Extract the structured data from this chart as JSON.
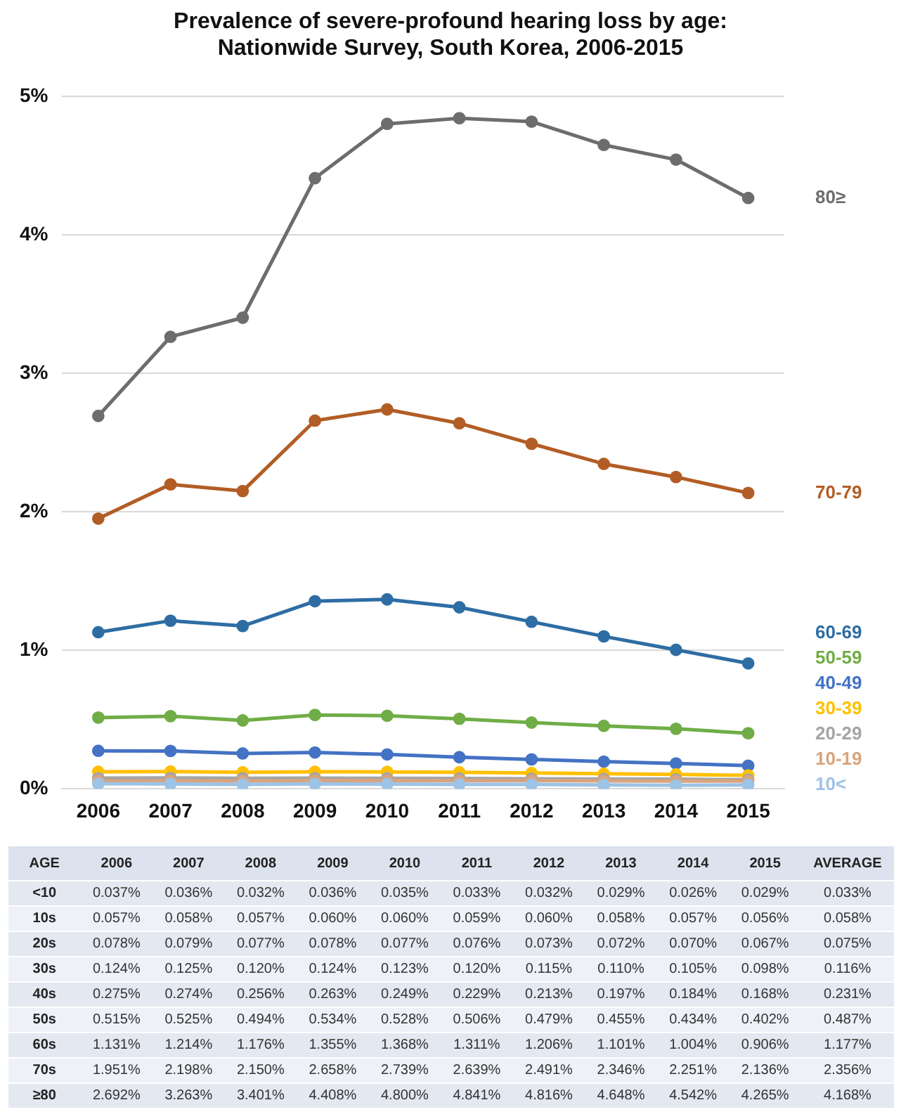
{
  "chart_data": {
    "type": "line",
    "title": "Prevalence of severe-profound hearing loss by age: Nationwide Survey, South Korea, 2006-2015",
    "categories": [
      "2006",
      "2007",
      "2008",
      "2009",
      "2010",
      "2011",
      "2012",
      "2013",
      "2014",
      "2015"
    ],
    "ylim": [
      0,
      5
    ],
    "yticks": [
      {
        "value": 0,
        "label": "0%"
      },
      {
        "value": 1,
        "label": "1%"
      },
      {
        "value": 2,
        "label": "2%"
      },
      {
        "value": 3,
        "label": "3%"
      },
      {
        "value": 4,
        "label": "4%"
      },
      {
        "value": 5,
        "label": "5%"
      }
    ],
    "grid": "y",
    "legend": "right",
    "marker": "circle",
    "line_style": "solid",
    "series": [
      {
        "name": "10<",
        "color": "#9dc3e6",
        "values": [
          0.037,
          0.036,
          0.032,
          0.036,
          0.035,
          0.033,
          0.032,
          0.029,
          0.026,
          0.029
        ],
        "value_labels": [
          "0.037%",
          "0.036%",
          "0.032%",
          "0.036%",
          "0.035%",
          "0.033%",
          "0.032%",
          "0.029%",
          "0.026%",
          "0.029%"
        ]
      },
      {
        "name": "10-19",
        "color": "#d8a47f",
        "values": [
          0.057,
          0.058,
          0.057,
          0.06,
          0.06,
          0.059,
          0.06,
          0.058,
          0.057,
          0.056
        ],
        "value_labels": [
          "0.057%",
          "0.058%",
          "0.057%",
          "0.060%",
          "0.060%",
          "0.059%",
          "0.060%",
          "0.058%",
          "0.057%",
          "0.056%"
        ]
      },
      {
        "name": "20-29",
        "color": "#a5a5a5",
        "values": [
          0.078,
          0.079,
          0.077,
          0.078,
          0.077,
          0.076,
          0.073,
          0.072,
          0.07,
          0.067
        ],
        "value_labels": [
          "0.078%",
          "0.079%",
          "0.077%",
          "0.078%",
          "0.077%",
          "0.076%",
          "0.073%",
          "0.072%",
          "0.070%",
          "0.067%"
        ]
      },
      {
        "name": "30-39",
        "color": "#ffc000",
        "values": [
          0.124,
          0.125,
          0.12,
          0.124,
          0.123,
          0.12,
          0.115,
          0.11,
          0.105,
          0.098
        ],
        "value_labels": [
          "0.124%",
          "0.125%",
          "0.120%",
          "0.124%",
          "0.123%",
          "0.120%",
          "0.115%",
          "0.110%",
          "0.105%",
          "0.098%"
        ]
      },
      {
        "name": "40-49",
        "color": "#4472c4",
        "values": [
          0.275,
          0.274,
          0.256,
          0.263,
          0.249,
          0.229,
          0.213,
          0.197,
          0.184,
          0.168
        ],
        "value_labels": [
          "0.275%",
          "0.274%",
          "0.256%",
          "0.263%",
          "0.249%",
          "0.229%",
          "0.213%",
          "0.197%",
          "0.184%",
          "0.168%"
        ]
      },
      {
        "name": "50-59",
        "color": "#70ad47",
        "values": [
          0.515,
          0.525,
          0.494,
          0.534,
          0.528,
          0.506,
          0.479,
          0.455,
          0.434,
          0.402
        ],
        "value_labels": [
          "0.515%",
          "0.525%",
          "0.494%",
          "0.534%",
          "0.528%",
          "0.506%",
          "0.479%",
          "0.455%",
          "0.434%",
          "0.402%"
        ]
      },
      {
        "name": "60-69",
        "color": "#2e6da4",
        "values": [
          1.131,
          1.214,
          1.176,
          1.355,
          1.368,
          1.311,
          1.206,
          1.101,
          1.004,
          0.906
        ],
        "value_labels": [
          "1.131%",
          "1.214%",
          "1.176%",
          "1.355%",
          "1.368%",
          "1.311%",
          "1.206%",
          "1.101%",
          "1.004%",
          "0.906%"
        ]
      },
      {
        "name": "70-79",
        "color": "#b25d25",
        "values": [
          1.951,
          2.198,
          2.15,
          2.658,
          2.739,
          2.639,
          2.491,
          2.346,
          2.251,
          2.136
        ],
        "value_labels": [
          "1.951%",
          "2.198%",
          "2.150%",
          "2.658%",
          "2.739%",
          "2.639%",
          "2.491%",
          "2.346%",
          "2.251%",
          "2.136%"
        ]
      },
      {
        "name": "80≥",
        "color": "#6d6d6d",
        "values": [
          2.692,
          3.263,
          3.401,
          4.408,
          4.8,
          4.841,
          4.816,
          4.648,
          4.542,
          4.265
        ],
        "value_labels": [
          "2.692%",
          "3.263%",
          "3.401%",
          "4.408%",
          "4.800%",
          "4.841%",
          "4.816%",
          "4.648%",
          "4.542%",
          "4.265%"
        ]
      }
    ],
    "annotations": [
      "AGE",
      "AVERAGE",
      "<10",
      "10s",
      "20s",
      "30s",
      "40s",
      "50s",
      "60s",
      "70s",
      "≥80",
      "0.033%",
      "0.058%",
      "0.075%",
      "0.116%",
      "0.231%",
      "0.487%",
      "1.177%",
      "2.356%",
      "4.168%"
    ]
  }
}
